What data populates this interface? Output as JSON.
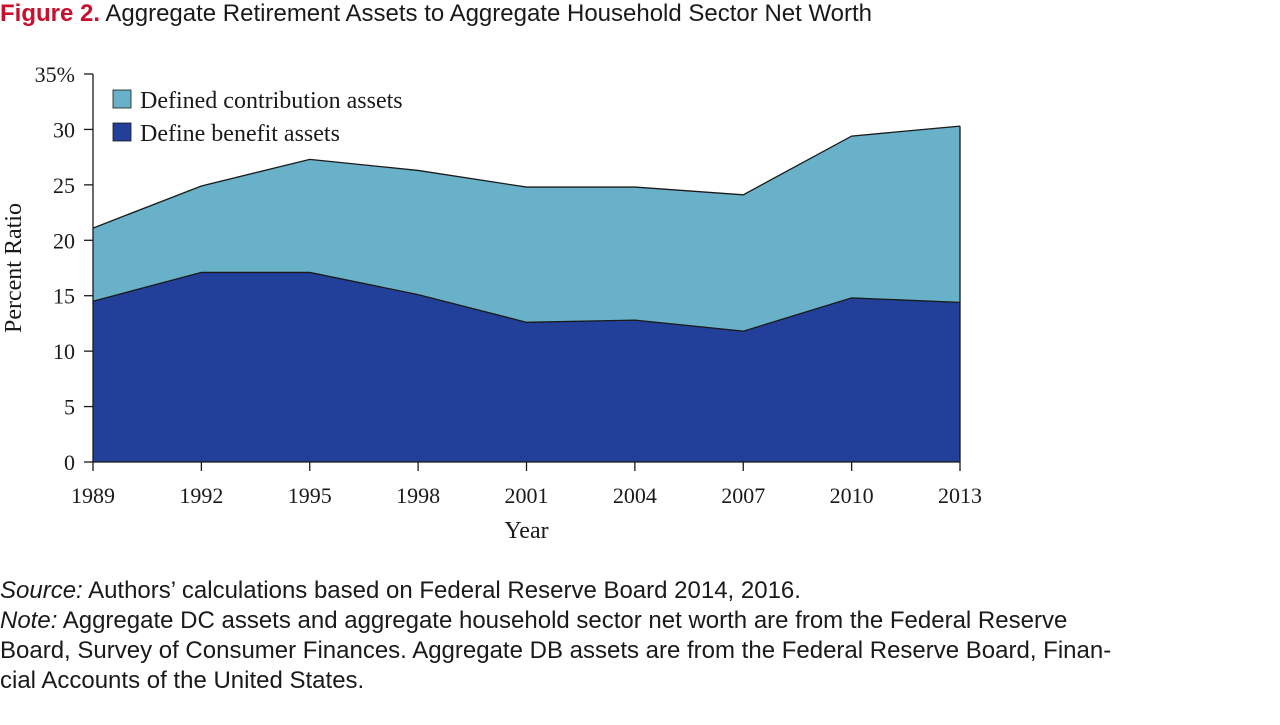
{
  "figure": {
    "label": "Figure 2.",
    "title": "Aggregate Retirement Assets to Aggregate Household Sector Net Worth"
  },
  "chart_data": {
    "type": "area",
    "stacked": true,
    "x": [
      "1989",
      "1992",
      "1995",
      "1998",
      "2001",
      "2004",
      "2007",
      "2010",
      "2013"
    ],
    "series": [
      {
        "name": "Define benefit assets",
        "color": "#22409a",
        "values": [
          14.5,
          17.1,
          17.1,
          15.1,
          12.6,
          12.8,
          11.8,
          14.8,
          14.4
        ]
      },
      {
        "name": "Defined contribution assets",
        "color": "#68b1c8",
        "values": [
          6.6,
          7.8,
          10.2,
          11.2,
          12.2,
          12.0,
          12.3,
          14.6,
          15.9
        ]
      }
    ],
    "xlabel": "Year",
    "ylabel": "Percent Ratio",
    "ylim": [
      0,
      35
    ],
    "yticks": [
      0,
      5,
      10,
      15,
      20,
      25,
      30,
      35
    ],
    "ytick_labels": [
      "0",
      "5",
      "10",
      "15",
      "20",
      "25",
      "30",
      "35%"
    ],
    "legend": {
      "position": "top-left",
      "order": [
        "Defined contribution assets",
        "Define benefit assets"
      ]
    },
    "grid": false
  },
  "notes": {
    "source_lead": "Source:",
    "source_text": "Authors’ calculations based on Federal Reserve Board 2014, 2016.",
    "note_lead": "Note:",
    "note_text": "Aggregate DC assets and aggregate household sector net worth are from the Federal Reserve",
    "note_line2": "Board, Survey of Consumer Finances. Aggregate DB assets are from the Federal Reserve Board, Finan-",
    "note_line3": "cial Accounts of the United States."
  }
}
